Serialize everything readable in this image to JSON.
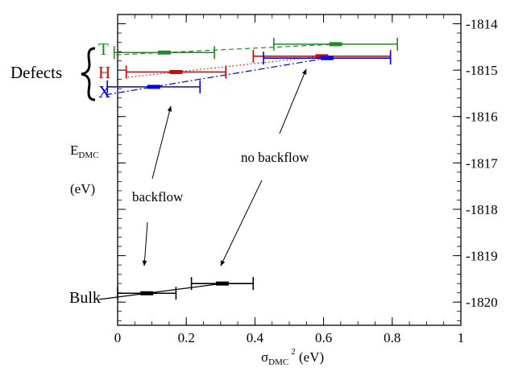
{
  "chart_data": {
    "type": "scatter",
    "xlabel": {
      "base": "σ",
      "sub": "DMC",
      "sup": "2",
      "unit": " (eV)"
    },
    "ylabel": {
      "base": "E",
      "sub": "DMC",
      "unit": "(eV)"
    },
    "xlim": [
      0,
      1
    ],
    "ylim": [
      -1820.5,
      -1813.8
    ],
    "x_ticks": [
      0,
      0.2,
      0.4,
      0.6,
      0.8,
      1
    ],
    "x_tick_labels": [
      "0",
      "0.2",
      "0.4",
      "0.6",
      "0.8",
      "1"
    ],
    "y_ticks": [
      -1820,
      -1819,
      -1818,
      -1817,
      -1816,
      -1815,
      -1814
    ],
    "y_tick_labels": [
      "-1820",
      "-1819",
      "-1818",
      "-1817",
      "-1816",
      "-1815",
      "-1814"
    ],
    "y_axis_side": "right",
    "grid": false,
    "series": [
      {
        "name": "T",
        "color": "#228b22",
        "dash": "6,4",
        "points": [
          {
            "x": 0.136,
            "y": -1814.62,
            "xerr": 0.146
          },
          {
            "x": 0.635,
            "y": -1814.44,
            "xerr": 0.18
          }
        ]
      },
      {
        "name": "H",
        "color": "#e00000",
        "dash": "1.5,3",
        "points": [
          {
            "x": 0.17,
            "y": -1815.04,
            "xerr": 0.145
          },
          {
            "x": 0.595,
            "y": -1814.7,
            "xerr": 0.2
          }
        ]
      },
      {
        "name": "X",
        "color": "#0000ee",
        "dash": "8,3,2,3",
        "points": [
          {
            "x": 0.105,
            "y": -1815.36,
            "xerr": 0.135
          },
          {
            "x": 0.61,
            "y": -1814.74,
            "xerr": 0.185
          }
        ]
      },
      {
        "name": "Bulk",
        "color": "#000000",
        "dash": "",
        "points": [
          {
            "x": 0.085,
            "y": -1819.81,
            "xerr": 0.085
          },
          {
            "x": 0.305,
            "y": -1819.6,
            "xerr": 0.09
          }
        ]
      }
    ],
    "annotations": {
      "group_label": "Defects",
      "bulk_label": "Bulk",
      "backflow": "backflow",
      "no_backflow": "no backflow"
    }
  }
}
